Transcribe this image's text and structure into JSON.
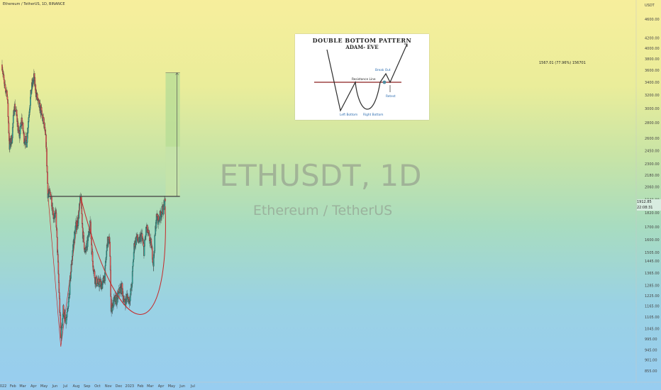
{
  "header": {
    "symbol_line": "Ethereum / TetherUS, 1D, BINANCE"
  },
  "watermark": {
    "main": "ETHUSDT, 1D",
    "sub": "Ethereum / TetherUS"
  },
  "inset": {
    "title": "Double Bottom Pattern",
    "subtitle": "ADAM- EVE",
    "labels": {
      "breakout": "Break Out",
      "resistance": "Resistance Line",
      "retest": "Retest",
      "left_bottom": "Left Bottom",
      "right_bottom": "Right Bottom"
    }
  },
  "measure_label": "1567.01 (77.96%) 156701",
  "price_tags": {
    "last": "1912.85",
    "countdown": "22:08:31"
  },
  "colors": {
    "up": "#26a69a",
    "down": "#ef5350",
    "curve": "#c62828",
    "target_fill": "#b5dc96"
  },
  "chart_data": {
    "type": "candlestick",
    "ylabel": "USDT",
    "y_scale": "log",
    "ylim": [
      830,
      5100
    ],
    "x_ticks": [
      "2022",
      "Feb",
      "Mar",
      "Apr",
      "May",
      "Jun",
      "Jul",
      "Aug",
      "Sep",
      "Oct",
      "Nov",
      "Dec",
      "2023",
      "Feb",
      "Mar",
      "Apr",
      "May",
      "Jun",
      "Jul"
    ],
    "y_ticks": [
      4600,
      4200,
      4000,
      3800,
      3600,
      3400,
      3200,
      3000,
      2800,
      2600,
      2450,
      2300,
      2180,
      2060,
      1940,
      1820,
      1700,
      1600,
      1505,
      1445,
      1365,
      1285,
      1225,
      1165,
      1105,
      1045,
      995,
      945,
      901,
      855
    ],
    "series_close": [
      {
        "x": "2022-01-01",
        "y": 3700
      },
      {
        "x": "2022-01-08",
        "y": 3300
      },
      {
        "x": "2022-01-15",
        "y": 3250
      },
      {
        "x": "2022-01-22",
        "y": 2500
      },
      {
        "x": "2022-01-29",
        "y": 2600
      },
      {
        "x": "2022-02-05",
        "y": 3050
      },
      {
        "x": "2022-02-12",
        "y": 2900
      },
      {
        "x": "2022-02-19",
        "y": 2600
      },
      {
        "x": "2022-02-26",
        "y": 2850
      },
      {
        "x": "2022-03-05",
        "y": 2600
      },
      {
        "x": "2022-03-12",
        "y": 2550
      },
      {
        "x": "2022-03-19",
        "y": 2950
      },
      {
        "x": "2022-03-26",
        "y": 3300
      },
      {
        "x": "2022-04-02",
        "y": 3480
      },
      {
        "x": "2022-04-09",
        "y": 3200
      },
      {
        "x": "2022-04-16",
        "y": 3050
      },
      {
        "x": "2022-04-23",
        "y": 2950
      },
      {
        "x": "2022-04-30",
        "y": 2800
      },
      {
        "x": "2022-05-07",
        "y": 2550
      },
      {
        "x": "2022-05-12",
        "y": 2000
      },
      {
        "x": "2022-05-21",
        "y": 1980
      },
      {
        "x": "2022-05-28",
        "y": 1800
      },
      {
        "x": "2022-06-04",
        "y": 1800
      },
      {
        "x": "2022-06-13",
        "y": 1250
      },
      {
        "x": "2022-06-18",
        "y": 1000
      },
      {
        "x": "2022-06-25",
        "y": 1150
      },
      {
        "x": "2022-07-02",
        "y": 1070
      },
      {
        "x": "2022-07-09",
        "y": 1150
      },
      {
        "x": "2022-07-16",
        "y": 1350
      },
      {
        "x": "2022-07-23",
        "y": 1550
      },
      {
        "x": "2022-07-30",
        "y": 1700
      },
      {
        "x": "2022-08-06",
        "y": 1750
      },
      {
        "x": "2022-08-14",
        "y": 1980
      },
      {
        "x": "2022-08-20",
        "y": 1650
      },
      {
        "x": "2022-08-27",
        "y": 1500
      },
      {
        "x": "2022-09-03",
        "y": 1580
      },
      {
        "x": "2022-09-10",
        "y": 1750
      },
      {
        "x": "2022-09-17",
        "y": 1450
      },
      {
        "x": "2022-09-24",
        "y": 1330
      },
      {
        "x": "2022-10-01",
        "y": 1300
      },
      {
        "x": "2022-10-08",
        "y": 1300
      },
      {
        "x": "2022-10-15",
        "y": 1290
      },
      {
        "x": "2022-10-22",
        "y": 1350
      },
      {
        "x": "2022-10-29",
        "y": 1580
      },
      {
        "x": "2022-11-05",
        "y": 1600
      },
      {
        "x": "2022-11-09",
        "y": 1150
      },
      {
        "x": "2022-11-19",
        "y": 1200
      },
      {
        "x": "2022-11-26",
        "y": 1200
      },
      {
        "x": "2022-12-03",
        "y": 1260
      },
      {
        "x": "2022-12-10",
        "y": 1270
      },
      {
        "x": "2022-12-17",
        "y": 1180
      },
      {
        "x": "2022-12-24",
        "y": 1220
      },
      {
        "x": "2022-12-31",
        "y": 1200
      },
      {
        "x": "2023-01-07",
        "y": 1280
      },
      {
        "x": "2023-01-14",
        "y": 1550
      },
      {
        "x": "2023-01-21",
        "y": 1620
      },
      {
        "x": "2023-01-28",
        "y": 1580
      },
      {
        "x": "2023-02-04",
        "y": 1640
      },
      {
        "x": "2023-02-11",
        "y": 1520
      },
      {
        "x": "2023-02-18",
        "y": 1700
      },
      {
        "x": "2023-02-25",
        "y": 1620
      },
      {
        "x": "2023-03-04",
        "y": 1560
      },
      {
        "x": "2023-03-10",
        "y": 1430
      },
      {
        "x": "2023-03-18",
        "y": 1780
      },
      {
        "x": "2023-03-25",
        "y": 1760
      },
      {
        "x": "2023-04-01",
        "y": 1820
      },
      {
        "x": "2023-04-08",
        "y": 1860
      },
      {
        "x": "2023-04-13",
        "y": 1912.85
      }
    ],
    "annotations": {
      "resistance": 1970,
      "target": 3560,
      "measure_text": "1567.01 (77.96%) 156701",
      "last_price": "1912.85",
      "countdown": "22:08:31"
    }
  }
}
